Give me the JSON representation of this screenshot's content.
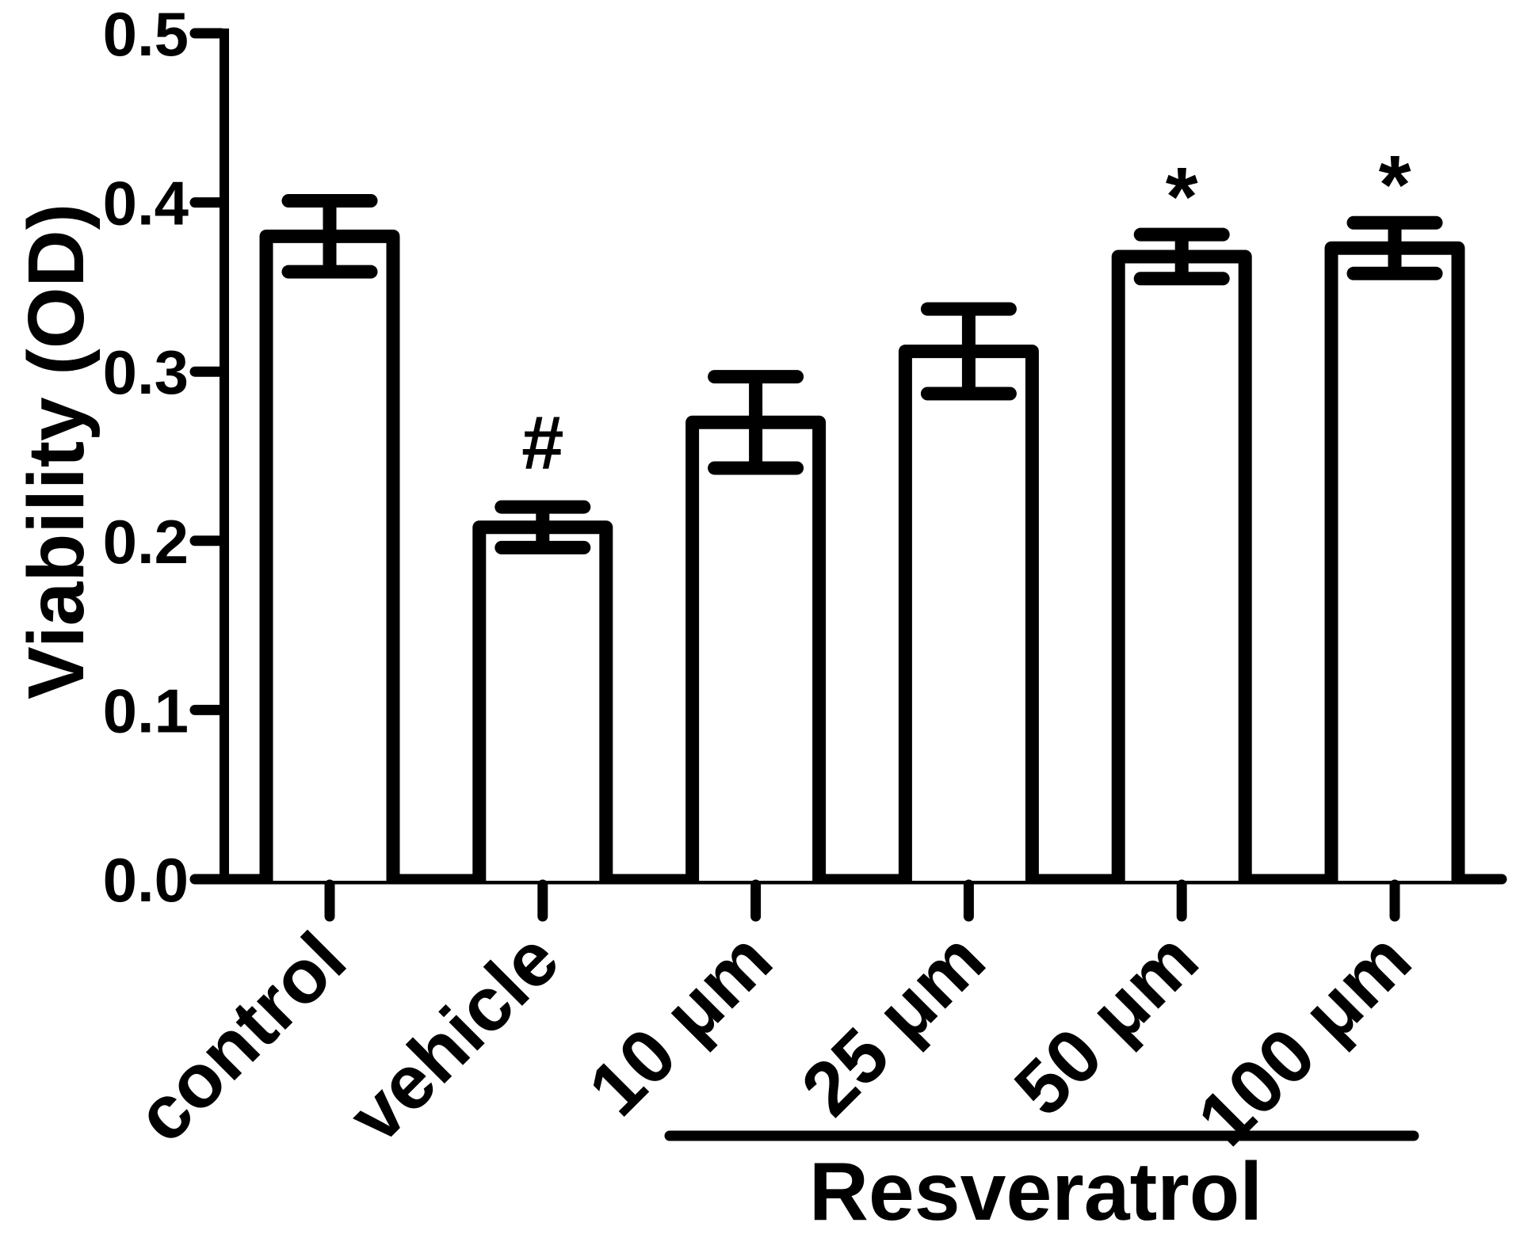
{
  "figure": {
    "background": "#ffffff",
    "ink": "#000000"
  },
  "chart_data": {
    "type": "bar",
    "title": "",
    "xlabel": "",
    "ylabel": "Viability (OD)",
    "ylim": [
      0.0,
      0.5
    ],
    "yticks": [
      "0.0",
      "0.1",
      "0.2",
      "0.3",
      "0.4",
      "0.5"
    ],
    "grid": false,
    "legend": "none",
    "bar_fill": "#ffffff",
    "bar_edge": "#000000",
    "categories": [
      "control",
      "vehicle",
      "10 μm",
      "25 μm",
      "50 μm",
      "100 μm"
    ],
    "values": [
      0.38,
      0.208,
      0.27,
      0.312,
      0.368,
      0.373
    ],
    "errors": [
      0.021,
      0.012,
      0.027,
      0.025,
      0.013,
      0.015
    ],
    "error_type": "symmetric-caps",
    "annotations": [
      {
        "category": "vehicle",
        "symbol": "#"
      },
      {
        "category": "50 μm",
        "symbol": "*"
      },
      {
        "category": "100 μm",
        "symbol": "*"
      }
    ],
    "group": {
      "label": "Resveratrol",
      "members": [
        "10 μm",
        "25 μm",
        "50 μm",
        "100 μm"
      ]
    }
  }
}
